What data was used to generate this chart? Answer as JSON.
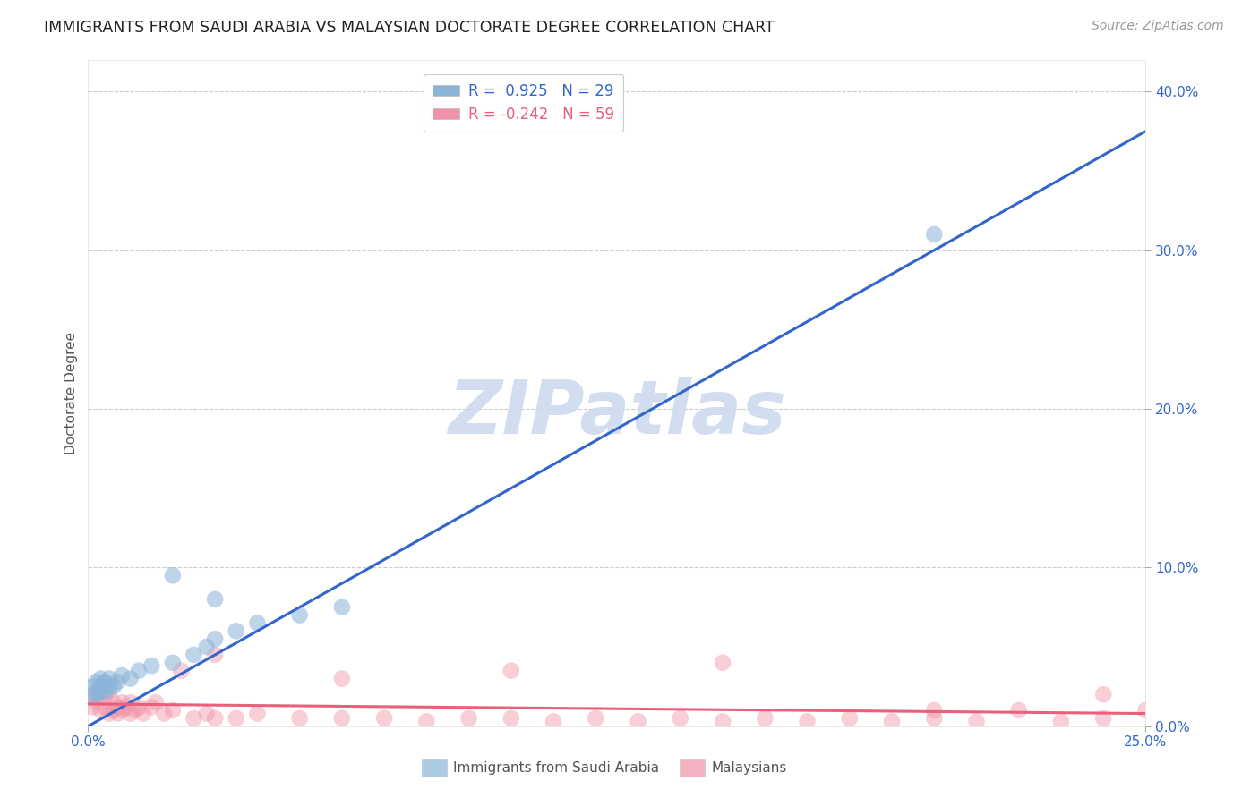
{
  "title": "IMMIGRANTS FROM SAUDI ARABIA VS MALAYSIAN DOCTORATE DEGREE CORRELATION CHART",
  "source": "Source: ZipAtlas.com",
  "ylabel": "Doctorate Degree",
  "xlim": [
    0.0,
    0.25
  ],
  "ylim": [
    0.0,
    0.42
  ],
  "yticks_right": [
    0.0,
    0.1,
    0.2,
    0.3,
    0.4
  ],
  "blue_color": "#8ab4d8",
  "pink_color": "#f093a8",
  "blue_line_color": "#3366cc",
  "pink_line_color": "#e8607a",
  "background_color": "#ffffff",
  "grid_color": "#cccccc",
  "watermark": "ZIPatlas",
  "legend_label_blue": "R =  0.925   N = 29",
  "legend_label_pink": "R = -0.242   N = 59",
  "bottom_label_blue": "Immigrants from Saudi Arabia",
  "bottom_label_pink": "Malaysians",
  "blue_x": [
    0.001,
    0.001,
    0.002,
    0.002,
    0.002,
    0.003,
    0.003,
    0.003,
    0.004,
    0.004,
    0.005,
    0.005,
    0.006,
    0.007,
    0.008,
    0.01,
    0.012,
    0.015,
    0.02,
    0.025,
    0.028,
    0.03,
    0.035,
    0.04,
    0.05,
    0.06,
    0.02,
    0.03,
    0.2
  ],
  "blue_y": [
    0.02,
    0.025,
    0.02,
    0.022,
    0.028,
    0.022,
    0.025,
    0.03,
    0.022,
    0.028,
    0.025,
    0.03,
    0.025,
    0.028,
    0.032,
    0.03,
    0.035,
    0.038,
    0.04,
    0.045,
    0.05,
    0.055,
    0.06,
    0.065,
    0.07,
    0.075,
    0.095,
    0.08,
    0.31
  ],
  "pink_x": [
    0.001,
    0.001,
    0.002,
    0.002,
    0.003,
    0.003,
    0.004,
    0.004,
    0.005,
    0.005,
    0.006,
    0.006,
    0.007,
    0.007,
    0.008,
    0.008,
    0.009,
    0.01,
    0.01,
    0.011,
    0.012,
    0.013,
    0.015,
    0.016,
    0.018,
    0.02,
    0.022,
    0.025,
    0.028,
    0.03,
    0.035,
    0.04,
    0.05,
    0.06,
    0.07,
    0.08,
    0.09,
    0.1,
    0.11,
    0.12,
    0.13,
    0.14,
    0.15,
    0.16,
    0.17,
    0.18,
    0.19,
    0.2,
    0.21,
    0.22,
    0.23,
    0.24,
    0.25,
    0.15,
    0.1,
    0.06,
    0.03,
    0.2,
    0.24
  ],
  "pink_y": [
    0.012,
    0.018,
    0.015,
    0.02,
    0.01,
    0.025,
    0.012,
    0.018,
    0.008,
    0.022,
    0.01,
    0.015,
    0.012,
    0.008,
    0.015,
    0.01,
    0.012,
    0.008,
    0.015,
    0.01,
    0.012,
    0.008,
    0.012,
    0.015,
    0.008,
    0.01,
    0.035,
    0.005,
    0.008,
    0.005,
    0.005,
    0.008,
    0.005,
    0.005,
    0.005,
    0.003,
    0.005,
    0.005,
    0.003,
    0.005,
    0.003,
    0.005,
    0.003,
    0.005,
    0.003,
    0.005,
    0.003,
    0.005,
    0.003,
    0.01,
    0.003,
    0.005,
    0.01,
    0.04,
    0.035,
    0.03,
    0.045,
    0.01,
    0.02
  ],
  "blue_line_x0": 0.0,
  "blue_line_y0": 0.0,
  "blue_line_x1": 0.25,
  "blue_line_y1": 0.375,
  "pink_line_x0": 0.0,
  "pink_line_y0": 0.014,
  "pink_line_x1": 0.25,
  "pink_line_y1": 0.008
}
